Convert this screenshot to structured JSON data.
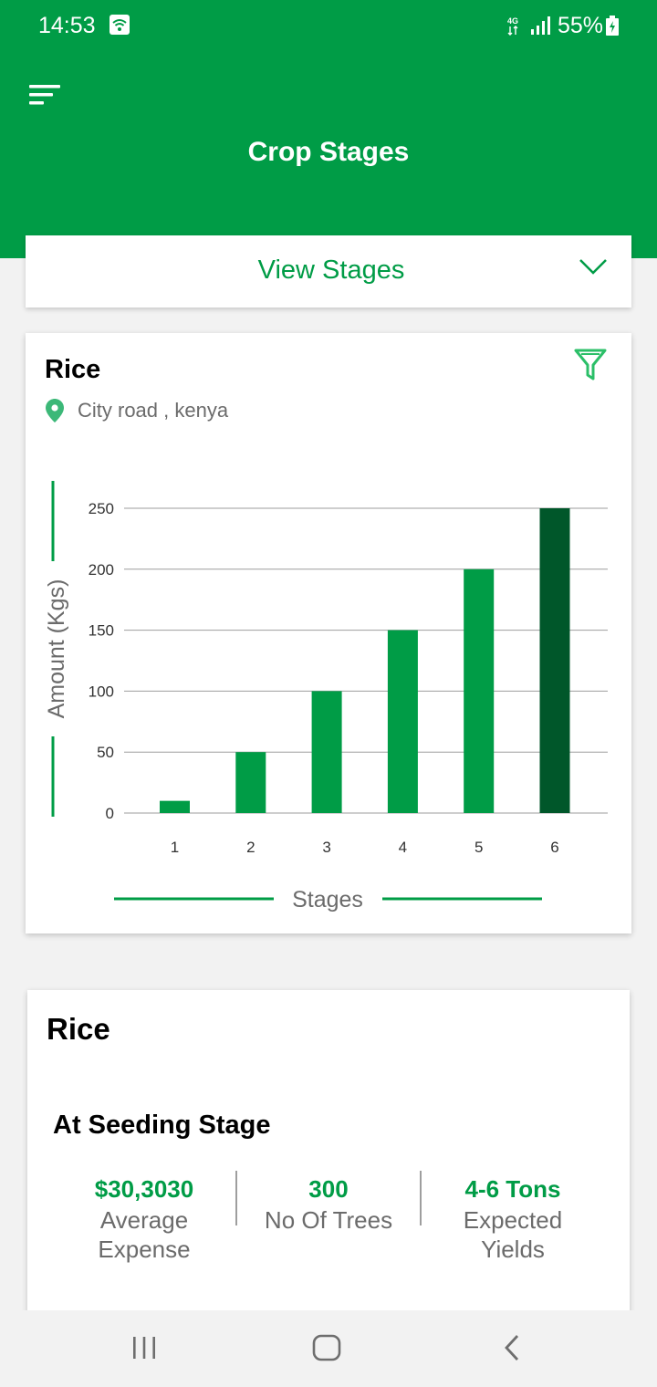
{
  "status_bar": {
    "time": "14:53",
    "network": "4G",
    "battery": "55%"
  },
  "header": {
    "title": "Crop Stages",
    "menu_icon": "menu-icon"
  },
  "dropdown": {
    "label": "View Stages",
    "icon": "chevron-down-icon"
  },
  "chart_card": {
    "crop": "Rice",
    "location": "City road , kenya",
    "icons": [
      "filter-icon",
      "location-pin-icon"
    ]
  },
  "chart_data": {
    "type": "bar",
    "categories": [
      "1",
      "2",
      "3",
      "4",
      "5",
      "6"
    ],
    "values": [
      10,
      50,
      100,
      150,
      200,
      250
    ],
    "yticks": [
      "250",
      "200",
      "150",
      "100",
      "50",
      "0"
    ],
    "ylim": [
      0,
      250
    ],
    "xlabel": "Stages",
    "ylabel": "Amount (Kgs)",
    "colors": {
      "bar": "#009c46",
      "highlight": "#00572a",
      "grid": "#9e9e9e"
    },
    "highlight_index": 5,
    "grid": true
  },
  "summary_card": {
    "crop": "Rice",
    "stage": "At Seeding Stage",
    "stats": [
      {
        "value": "$30,3030",
        "label_1": "Average",
        "label_2": "Expense"
      },
      {
        "value": "300",
        "label_1": "No Of Trees",
        "label_2": ""
      },
      {
        "value": "4-6 Tons",
        "label_1": "Expected",
        "label_2": "Yields"
      }
    ]
  },
  "colors": {
    "primary": "#009c46",
    "text_muted": "#6b6b6b"
  }
}
